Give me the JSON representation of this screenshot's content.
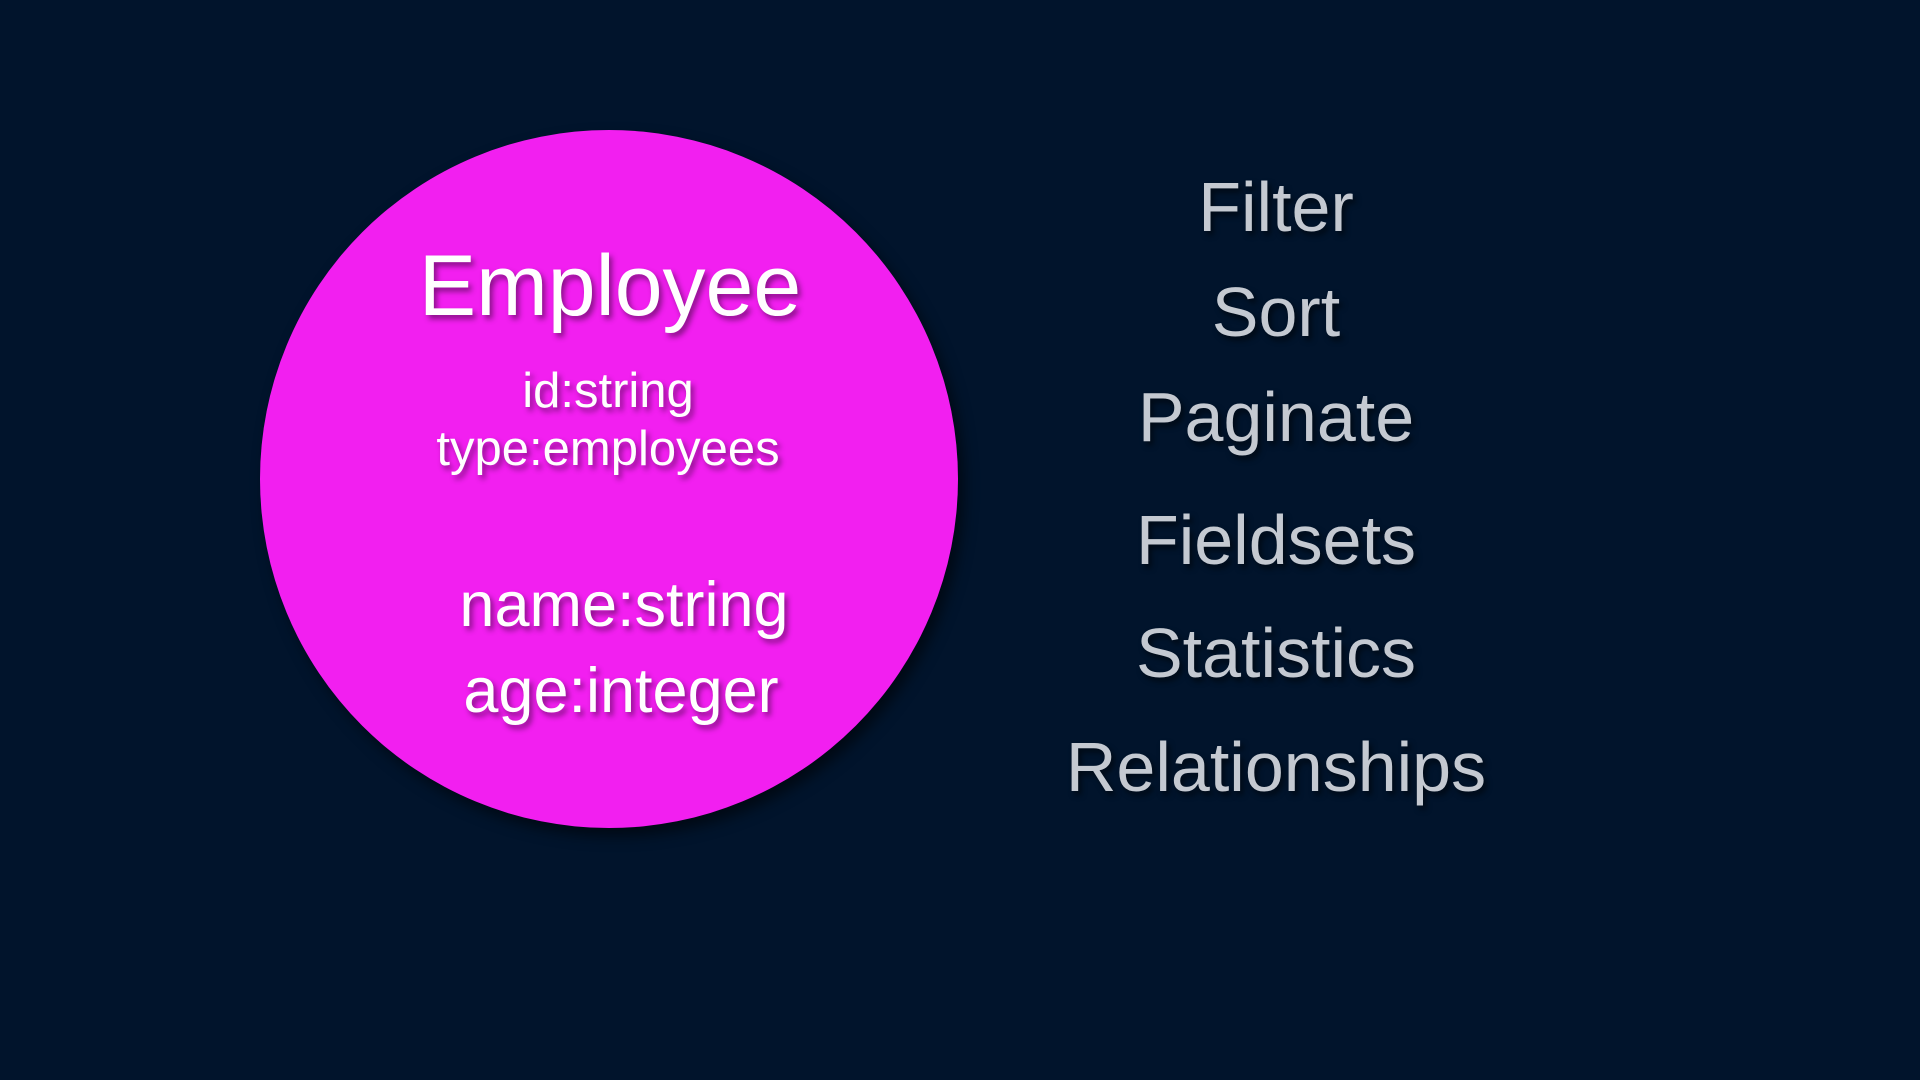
{
  "resource": {
    "name": "Employee",
    "identity": [
      "id:string",
      "type:employees"
    ],
    "attributes": [
      "name:string",
      "age:integer"
    ]
  },
  "features": [
    "Filter",
    "Sort",
    "Paginate",
    "Fieldsets",
    "Statistics",
    "Relationships"
  ],
  "colors": {
    "background": "#01142c",
    "resource_fill": "#f21ff0",
    "resource_text": "#ffffff",
    "feature_text": "#c4c9d1"
  }
}
